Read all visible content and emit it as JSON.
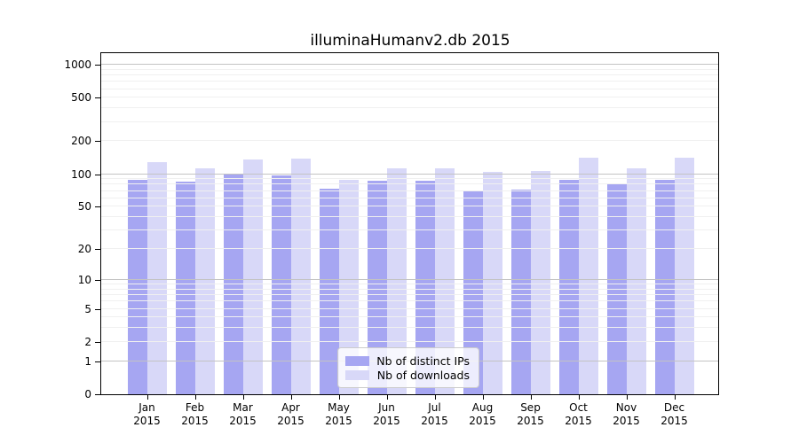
{
  "title": "illuminaHumanv2.db 2015",
  "colors": {
    "distinct_ips": "#a6a6f2",
    "downloads": "#d8d8f8",
    "major_grid": "#c3c3c3",
    "minor_grid": "#f0f0f0",
    "axis": "#000000",
    "legend_border": "#cccccc"
  },
  "legend": {
    "items": [
      {
        "label": "Nb of distinct IPs"
      },
      {
        "label": "Nb of downloads"
      }
    ]
  },
  "chart_data": {
    "type": "bar",
    "title": "illuminaHumanv2.db 2015",
    "categories": [
      "Jan 2015",
      "Feb 2015",
      "Mar 2015",
      "Apr 2015",
      "May 2015",
      "Jun 2015",
      "Jul 2015",
      "Aug 2015",
      "Sep 2015",
      "Oct 2015",
      "Nov 2015",
      "Dec 2015"
    ],
    "series": [
      {
        "name": "Nb of distinct IPs",
        "color": "#a6a6f2",
        "values": [
          88,
          86,
          99,
          97,
          74,
          87,
          87,
          70,
          72,
          88,
          82,
          89
        ]
      },
      {
        "name": "Nb of downloads",
        "color": "#d8d8f8",
        "values": [
          129,
          114,
          136,
          139,
          88,
          113,
          113,
          105,
          106,
          141,
          114,
          142
        ]
      }
    ],
    "yscale": "log10(value+1)",
    "yticks": [
      0,
      1,
      2,
      5,
      10,
      20,
      50,
      100,
      200,
      500,
      1000
    ],
    "ylim": [
      0,
      1000
    ],
    "grid": "on",
    "minor_grid_values": [
      2,
      3,
      4,
      5,
      6,
      7,
      8,
      9,
      20,
      30,
      40,
      50,
      60,
      70,
      80,
      90,
      200,
      300,
      400,
      500,
      600,
      700,
      800,
      900
    ],
    "major_grid_values": [
      1,
      10,
      100,
      1000
    ],
    "legend_position": "bottom-center"
  }
}
